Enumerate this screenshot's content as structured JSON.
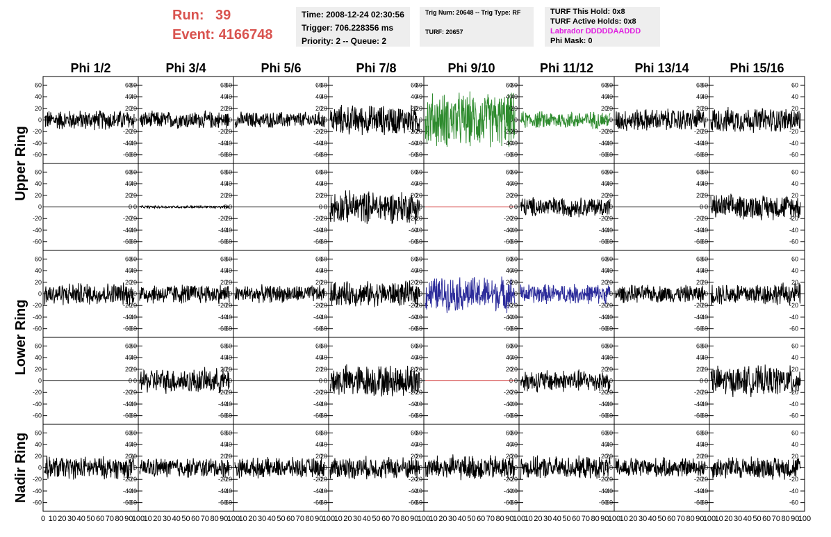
{
  "header": {
    "run_label": "Run:",
    "run_value": "39",
    "event_label": "Event:",
    "event_value": "4166748",
    "time_line": "Time: 2008-12-24 02:30:56",
    "trigger_line": "Trigger: 706.228356 ms",
    "priority_line": "Priority: 2 -- Queue: 2",
    "trig_num_line": "Trig Num: 20648 -- Trig Type: RF",
    "turf_line": "TURF: 20657",
    "turf_hold_line": "TURF This Hold: 0x8",
    "turf_active_line": "TURF Active Holds: 0x8",
    "labrador_line": "Labrador DDDDDAADDD",
    "phi_mask_line": "Phi Mask: 0",
    "labrador_color": "#e020e0",
    "run_color": "#d9534f"
  },
  "chart_data": {
    "type": "line",
    "columns": [
      "Phi 1/2",
      "Phi 3/4",
      "Phi 5/6",
      "Phi 7/8",
      "Phi 9/10",
      "Phi 11/12",
      "Phi 13/14",
      "Phi 15/16"
    ],
    "rows": [
      "Upper Ring",
      "Upper Ring",
      "Lower Ring",
      "Lower Ring",
      "Nadir Ring"
    ],
    "row_labels": [
      {
        "text": "Upper Ring",
        "span_rows": [
          0,
          1
        ]
      },
      {
        "text": "Lower Ring",
        "span_rows": [
          2,
          3
        ]
      },
      {
        "text": "Nadir Ring",
        "span_rows": [
          4,
          4
        ]
      }
    ],
    "ylim": [
      -70,
      70
    ],
    "xlim": [
      0,
      100
    ],
    "y_ticks": [
      -60,
      -40,
      -20,
      0,
      20,
      40,
      60
    ],
    "x_ticks": [
      0,
      10,
      20,
      30,
      40,
      50,
      60,
      70,
      80,
      90,
      100
    ],
    "trace_colors": {
      "normal": "#000000",
      "upper_triggered": "#2e8b2e",
      "lower_triggered": "#2b2b9a",
      "masked": "#cc2222"
    },
    "grid": false,
    "panels": [
      [
        {
          "amp": 16,
          "color": "normal"
        },
        {
          "amp": 14,
          "color": "normal"
        },
        {
          "amp": 13,
          "color": "normal"
        },
        {
          "amp": 24,
          "color": "normal"
        },
        {
          "amp": 44,
          "color": "upper_triggered"
        },
        {
          "amp": 14,
          "color": "upper_triggered"
        },
        {
          "amp": 18,
          "color": "normal"
        },
        {
          "amp": 20,
          "color": "normal"
        }
      ],
      [
        {
          "amp": 0,
          "color": "normal"
        },
        {
          "amp": 2,
          "color": "normal"
        },
        {
          "amp": 0,
          "color": "normal"
        },
        {
          "amp": 26,
          "color": "normal"
        },
        {
          "amp": 0,
          "color": "masked"
        },
        {
          "amp": 16,
          "color": "normal"
        },
        {
          "amp": 0,
          "color": "normal"
        },
        {
          "amp": 20,
          "color": "normal"
        }
      ],
      [
        {
          "amp": 18,
          "color": "normal"
        },
        {
          "amp": 16,
          "color": "normal"
        },
        {
          "amp": 14,
          "color": "normal"
        },
        {
          "amp": 20,
          "color": "normal"
        },
        {
          "amp": 28,
          "color": "lower_triggered"
        },
        {
          "amp": 16,
          "color": "lower_triggered"
        },
        {
          "amp": 14,
          "color": "normal"
        },
        {
          "amp": 18,
          "color": "normal"
        }
      ],
      [
        {
          "amp": 0,
          "color": "normal"
        },
        {
          "amp": 20,
          "color": "normal"
        },
        {
          "amp": 0,
          "color": "normal"
        },
        {
          "amp": 26,
          "color": "normal"
        },
        {
          "amp": 0,
          "color": "masked"
        },
        {
          "amp": 18,
          "color": "normal"
        },
        {
          "amp": 0,
          "color": "normal"
        },
        {
          "amp": 24,
          "color": "normal"
        }
      ],
      [
        {
          "amp": 18,
          "color": "normal"
        },
        {
          "amp": 16,
          "color": "normal"
        },
        {
          "amp": 16,
          "color": "normal"
        },
        {
          "amp": 18,
          "color": "normal"
        },
        {
          "amp": 20,
          "color": "normal"
        },
        {
          "amp": 18,
          "color": "normal"
        },
        {
          "amp": 16,
          "color": "normal"
        },
        {
          "amp": 18,
          "color": "normal"
        }
      ]
    ]
  }
}
